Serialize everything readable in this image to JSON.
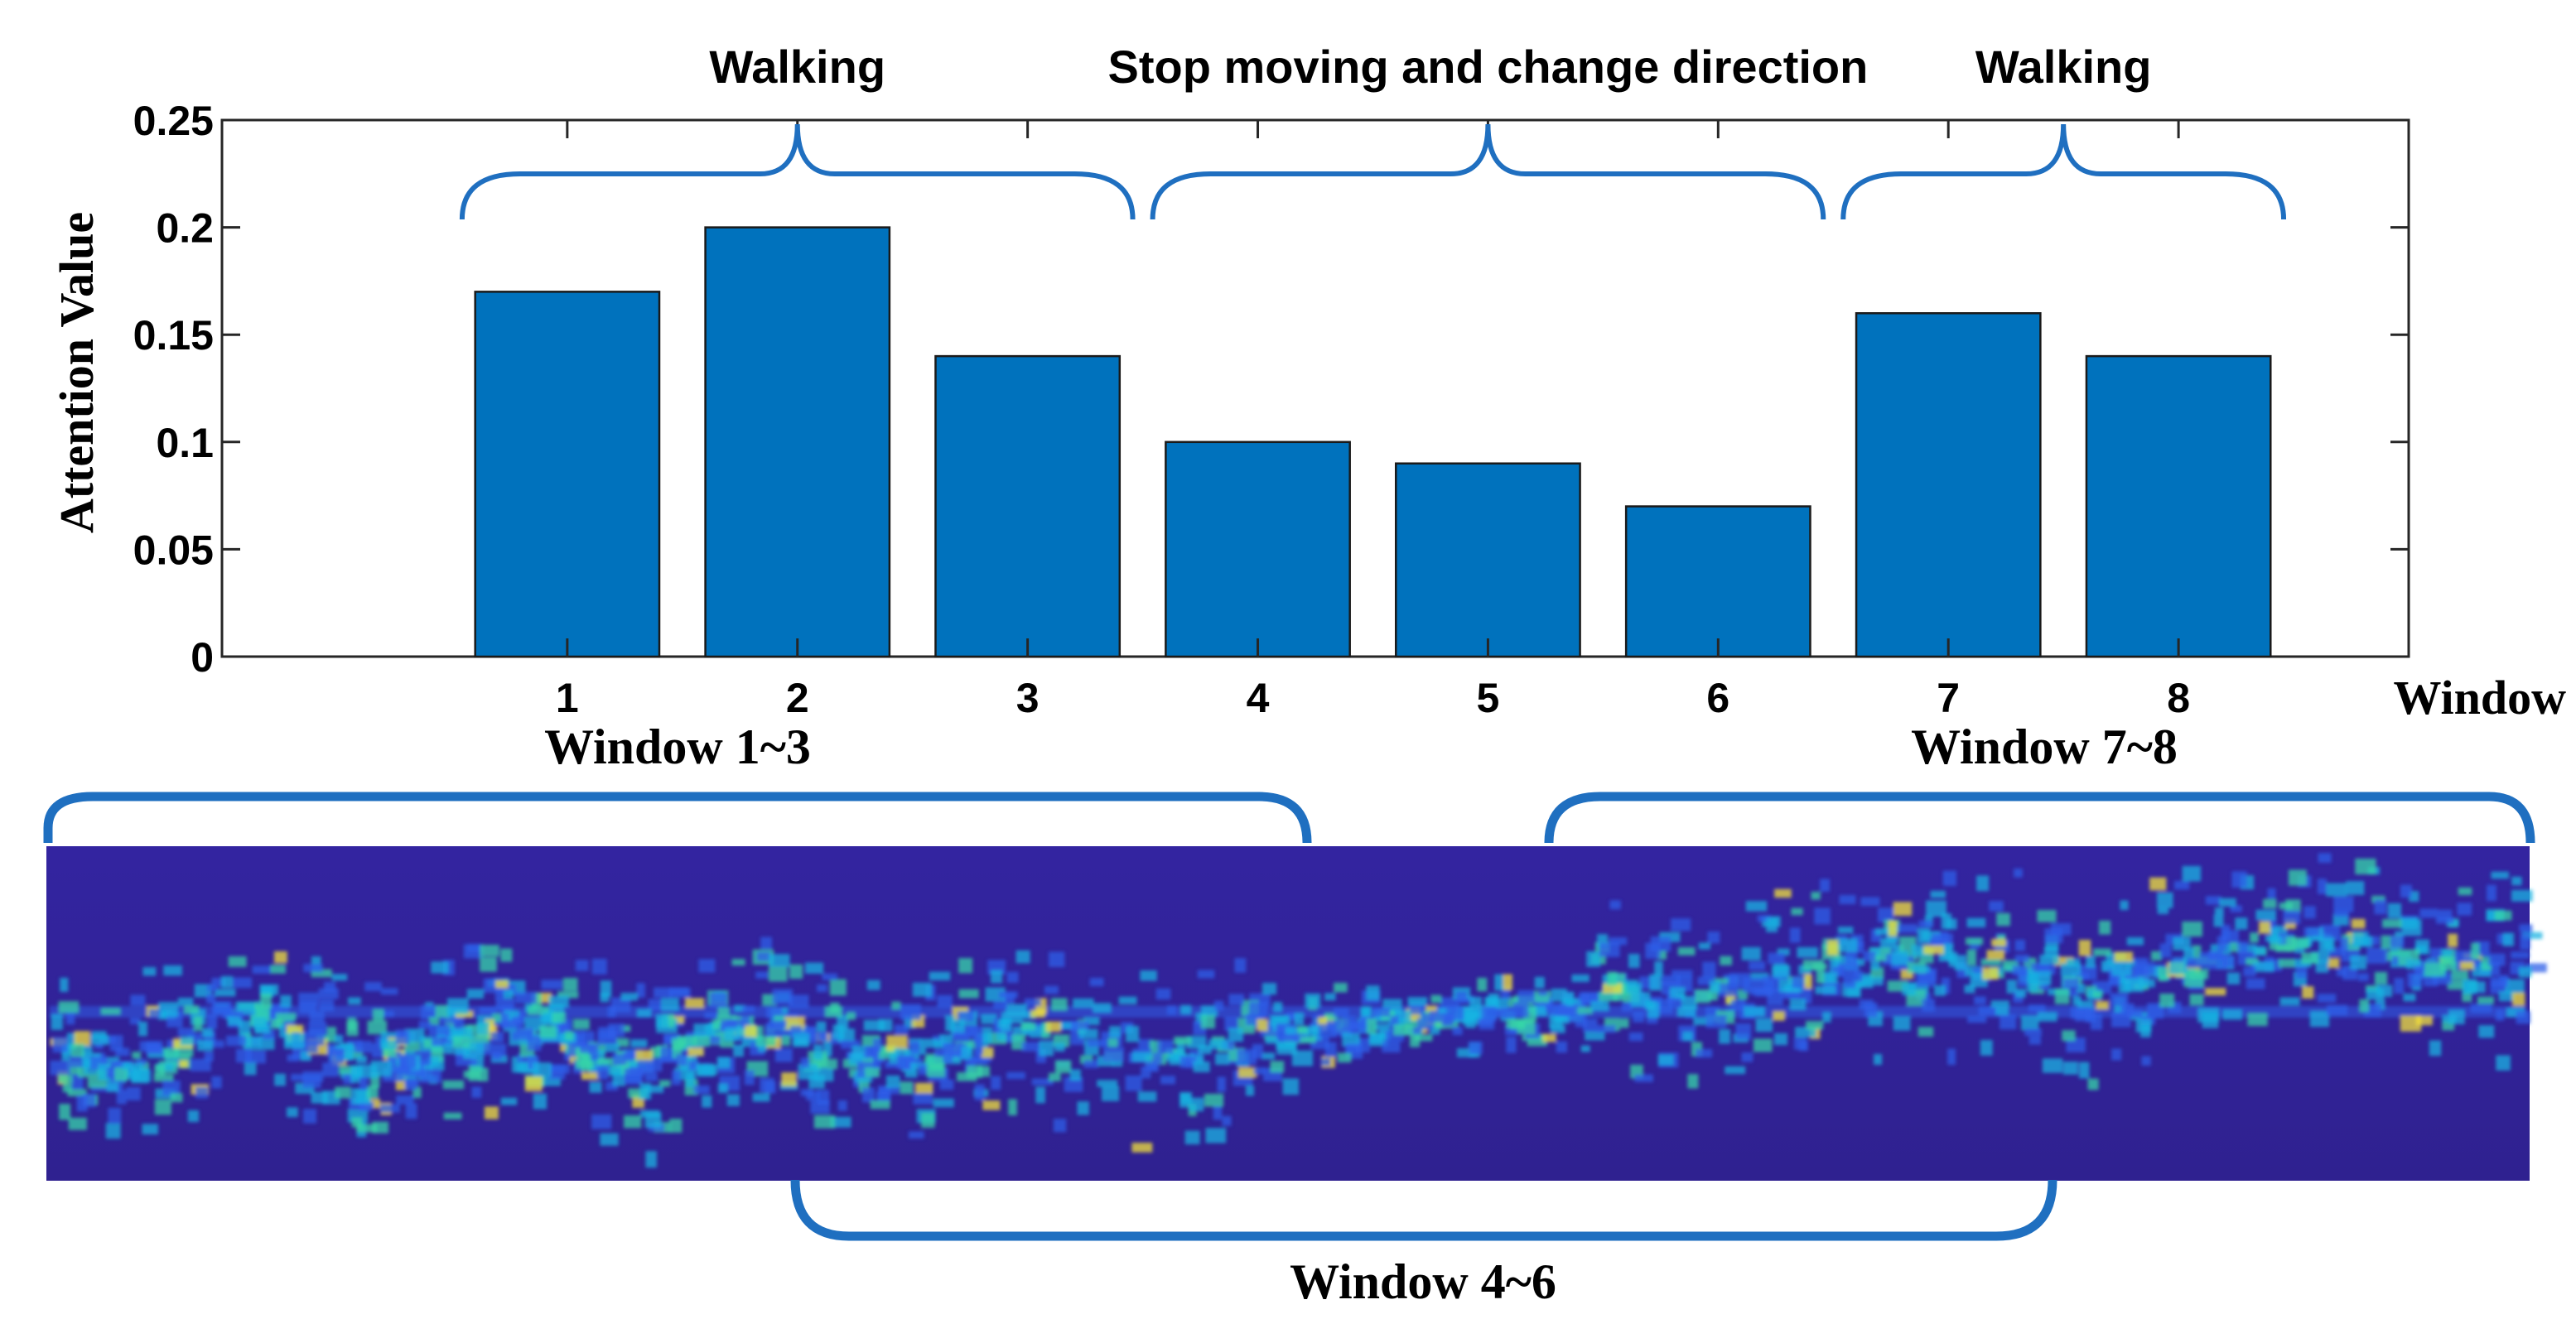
{
  "chart_data": {
    "type": "bar",
    "ylabel": "Attention Value",
    "xlabel": "Window",
    "categories": [
      "1",
      "2",
      "3",
      "4",
      "5",
      "6",
      "7",
      "8"
    ],
    "values": [
      0.17,
      0.2,
      0.14,
      0.1,
      0.09,
      0.07,
      0.16,
      0.14
    ],
    "ylim": [
      0,
      0.25
    ],
    "xlim": [
      -0.5,
      9.0
    ],
    "yticks": [
      0,
      0.05,
      0.1,
      0.15,
      0.2,
      0.25
    ],
    "ytick_labels": [
      "0",
      "0.05",
      "0.1",
      "0.15",
      "0.2",
      "0.25"
    ],
    "bar_color": "#0072BD",
    "grid": false,
    "annotations": [
      {
        "text": "Walking",
        "from": 1,
        "to": 3
      },
      {
        "text": "Stop moving and change direction",
        "from": 4,
        "to": 6
      },
      {
        "text": "Walking",
        "from": 7,
        "to": 8
      }
    ]
  },
  "spectrogram": {
    "window_labels": {
      "first": "Window 1~3",
      "middle": "Window 4~6",
      "last": "Window 7~8"
    },
    "colors": {
      "background": "#35249a",
      "low": "#2f5fe8",
      "mid": "#19b3e2",
      "high": "#35d6a8",
      "peak": "#f4e13a",
      "bracket": "#1f6fc0"
    }
  }
}
